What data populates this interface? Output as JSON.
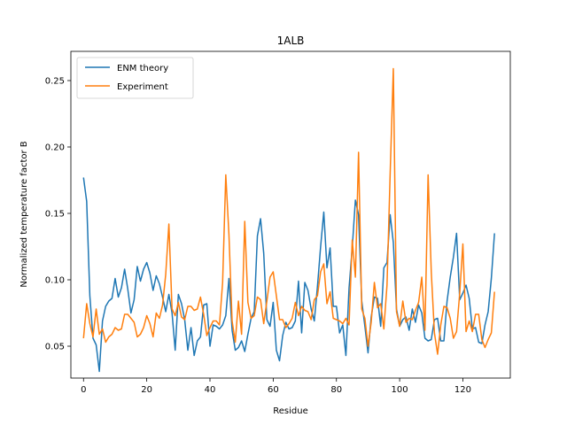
{
  "chart_data": {
    "type": "line",
    "title": "1ALB",
    "xlabel": "Residue",
    "ylabel": "Normalized temperature factor B",
    "xlim": [
      -4,
      135
    ],
    "ylim": [
      0.026,
      0.272
    ],
    "xticks": [
      0,
      20,
      40,
      60,
      80,
      100,
      120
    ],
    "yticks": [
      0.05,
      0.1,
      0.15,
      0.2,
      0.25
    ],
    "ytick_labels": [
      "0.05",
      "0.10",
      "0.15",
      "0.20",
      "0.25"
    ],
    "grid": false,
    "legend_position": "upper-left",
    "series": [
      {
        "name": "ENM theory",
        "color": "#1f77b4",
        "values": [
          0.177,
          0.159,
          0.088,
          0.056,
          0.051,
          0.031,
          0.069,
          0.08,
          0.084,
          0.086,
          0.101,
          0.087,
          0.094,
          0.108,
          0.093,
          0.075,
          0.085,
          0.11,
          0.099,
          0.108,
          0.113,
          0.105,
          0.092,
          0.103,
          0.097,
          0.087,
          0.076,
          0.089,
          0.075,
          0.047,
          0.089,
          0.082,
          0.07,
          0.047,
          0.064,
          0.043,
          0.054,
          0.057,
          0.081,
          0.082,
          0.05,
          0.066,
          0.065,
          0.063,
          0.066,
          0.073,
          0.101,
          0.062,
          0.047,
          0.049,
          0.054,
          0.046,
          0.059,
          0.071,
          0.076,
          0.133,
          0.146,
          0.12,
          0.07,
          0.065,
          0.083,
          0.047,
          0.039,
          0.058,
          0.068,
          0.063,
          0.064,
          0.069,
          0.099,
          0.06,
          0.098,
          0.092,
          0.078,
          0.069,
          0.095,
          0.125,
          0.151,
          0.109,
          0.124,
          0.08,
          0.08,
          0.06,
          0.066,
          0.043,
          0.094,
          0.124,
          0.16,
          0.149,
          0.084,
          0.065,
          0.045,
          0.072,
          0.087,
          0.086,
          0.065,
          0.109,
          0.113,
          0.149,
          0.128,
          0.078,
          0.065,
          0.07,
          0.072,
          0.062,
          0.078,
          0.068,
          0.081,
          0.075,
          0.056,
          0.054,
          0.055,
          0.07,
          0.071,
          0.054,
          0.054,
          0.084,
          0.102,
          0.117,
          0.135,
          0.085,
          0.09,
          0.096,
          0.086,
          0.063,
          0.064,
          0.053,
          0.052,
          0.066,
          0.076,
          0.101,
          0.135
        ]
      },
      {
        "name": "Experiment",
        "color": "#ff7f0e",
        "values": [
          0.056,
          0.082,
          0.067,
          0.057,
          0.078,
          0.059,
          0.063,
          0.053,
          0.057,
          0.059,
          0.064,
          0.062,
          0.063,
          0.074,
          0.074,
          0.071,
          0.068,
          0.057,
          0.059,
          0.064,
          0.073,
          0.067,
          0.057,
          0.075,
          0.071,
          0.081,
          0.104,
          0.142,
          0.078,
          0.073,
          0.083,
          0.072,
          0.07,
          0.08,
          0.08,
          0.077,
          0.078,
          0.087,
          0.074,
          0.058,
          0.064,
          0.069,
          0.069,
          0.066,
          0.098,
          0.179,
          0.134,
          0.069,
          0.053,
          0.084,
          0.059,
          0.144,
          0.083,
          0.071,
          0.073,
          0.087,
          0.085,
          0.067,
          0.084,
          0.102,
          0.106,
          0.088,
          0.07,
          0.07,
          0.064,
          0.067,
          0.071,
          0.083,
          0.073,
          0.08,
          0.077,
          0.076,
          0.07,
          0.085,
          0.088,
          0.106,
          0.112,
          0.082,
          0.091,
          0.071,
          0.07,
          0.069,
          0.067,
          0.071,
          0.066,
          0.13,
          0.102,
          0.196,
          0.078,
          0.071,
          0.05,
          0.068,
          0.098,
          0.079,
          0.082,
          0.063,
          0.096,
          0.18,
          0.259,
          0.076,
          0.065,
          0.084,
          0.068,
          0.071,
          0.07,
          0.077,
          0.083,
          0.102,
          0.062,
          0.179,
          0.106,
          0.06,
          0.044,
          0.066,
          0.08,
          0.079,
          0.071,
          0.056,
          0.061,
          0.09,
          0.127,
          0.061,
          0.069,
          0.061,
          0.074,
          0.074,
          0.055,
          0.049,
          0.055,
          0.06,
          0.091
        ]
      }
    ]
  }
}
